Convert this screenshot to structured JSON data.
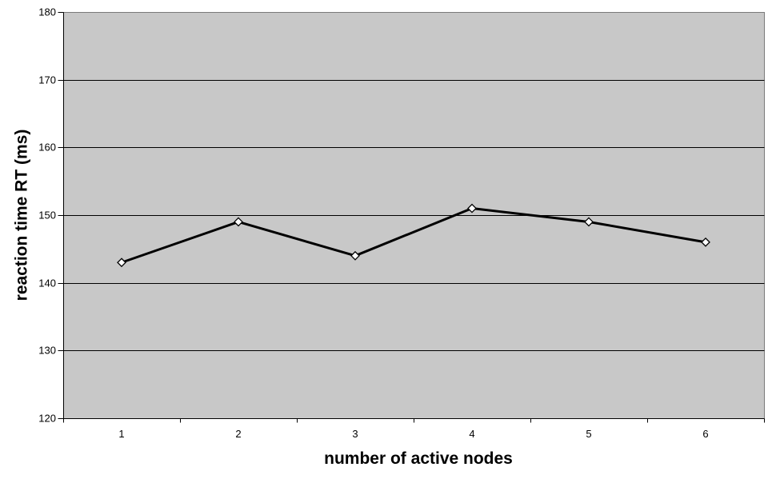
{
  "chart_data": {
    "type": "line",
    "title": "",
    "xlabel": "number of active nodes",
    "ylabel": "reaction time RT (ms)",
    "categories": [
      "1",
      "2",
      "3",
      "4",
      "5",
      "6"
    ],
    "series": [
      {
        "name": "reaction time",
        "values": [
          143,
          149,
          144,
          151,
          149,
          146
        ]
      }
    ],
    "ylim": [
      120,
      180
    ],
    "yticks": [
      120,
      130,
      140,
      150,
      160,
      170,
      180
    ],
    "grid": "horizontal",
    "legend_position": "none",
    "colors": {
      "plot_background": "#c8c8c8",
      "plot_border": "#7a7a7a",
      "gridline": "#000000",
      "axis": "#000000",
      "line": "#000000",
      "marker_fill": "#ffffff",
      "marker_stroke": "#000000",
      "page_background": "#ffffff"
    },
    "marker_shape": "diamond"
  }
}
